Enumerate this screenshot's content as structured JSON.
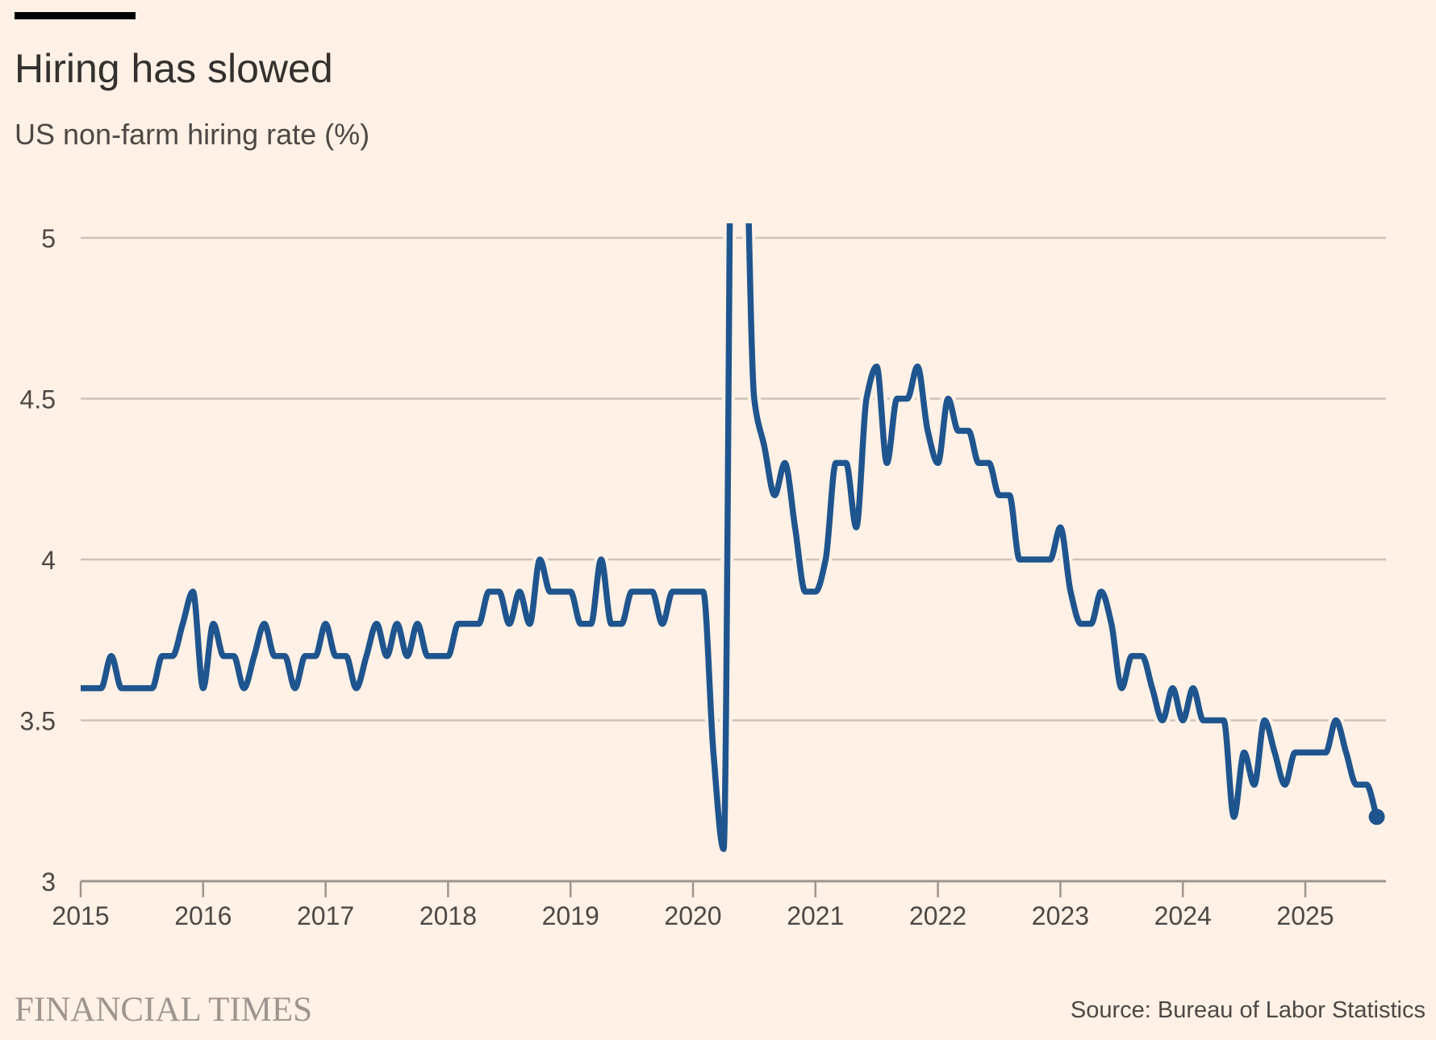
{
  "header": {
    "title": "Hiring has slowed",
    "subtitle": "US non-farm hiring rate (%)"
  },
  "footer": {
    "brand": "FINANCIAL TIMES",
    "source": "Source: Bureau of Labor Statistics"
  },
  "colors": {
    "background": "#FFF1E5",
    "line": "#1F558F",
    "gridline": "#CEC1B6",
    "axis": "#9E958F"
  },
  "chart_data": {
    "type": "line",
    "title": "Hiring has slowed",
    "subtitle": "US non-farm hiring rate (%)",
    "xlabel": "",
    "ylabel": "US non-farm hiring rate (%)",
    "ylim": [
      3,
      5
    ],
    "yticks": [
      3,
      3.5,
      4,
      4.5,
      5
    ],
    "ytick_labels": [
      "3",
      "3.5",
      "4",
      "4.5",
      "5"
    ],
    "xlim": [
      "2015-01",
      "2025-08"
    ],
    "xticks": [
      "2015",
      "2016",
      "2017",
      "2018",
      "2019",
      "2020",
      "2021",
      "2022",
      "2023",
      "2024",
      "2025"
    ],
    "grid": true,
    "legend": "none",
    "frequency": "monthly",
    "start": "2015-01",
    "end_marker": true,
    "series": [
      {
        "name": "US non-farm hiring rate",
        "values": [
          3.6,
          3.6,
          3.6,
          3.7,
          3.6,
          3.6,
          3.6,
          3.6,
          3.7,
          3.7,
          3.8,
          3.9,
          3.6,
          3.8,
          3.7,
          3.7,
          3.6,
          3.7,
          3.8,
          3.7,
          3.7,
          3.6,
          3.7,
          3.7,
          3.8,
          3.7,
          3.7,
          3.6,
          3.7,
          3.8,
          3.7,
          3.8,
          3.7,
          3.8,
          3.7,
          3.7,
          3.7,
          3.8,
          3.8,
          3.8,
          3.9,
          3.9,
          3.8,
          3.9,
          3.8,
          4.0,
          3.9,
          3.9,
          3.9,
          3.8,
          3.8,
          4.0,
          3.8,
          3.8,
          3.9,
          3.9,
          3.9,
          3.8,
          3.9,
          3.9,
          3.9,
          3.9,
          3.4,
          3.1,
          6.1,
          5.6,
          4.5,
          4.35,
          4.2,
          4.3,
          4.1,
          3.9,
          3.9,
          4.0,
          4.3,
          4.3,
          4.1,
          4.5,
          4.6,
          4.3,
          4.5,
          4.5,
          4.6,
          4.4,
          4.3,
          4.5,
          4.4,
          4.4,
          4.3,
          4.3,
          4.2,
          4.2,
          4.0,
          4.0,
          4.0,
          4.0,
          4.1,
          3.9,
          3.8,
          3.8,
          3.9,
          3.8,
          3.6,
          3.7,
          3.7,
          3.6,
          3.5,
          3.6,
          3.5,
          3.6,
          3.5,
          3.5,
          3.5,
          3.2,
          3.4,
          3.3,
          3.5,
          3.4,
          3.3,
          3.4,
          3.4,
          3.4,
          3.4,
          3.5,
          3.4,
          3.3,
          3.3,
          3.2
        ]
      }
    ]
  }
}
